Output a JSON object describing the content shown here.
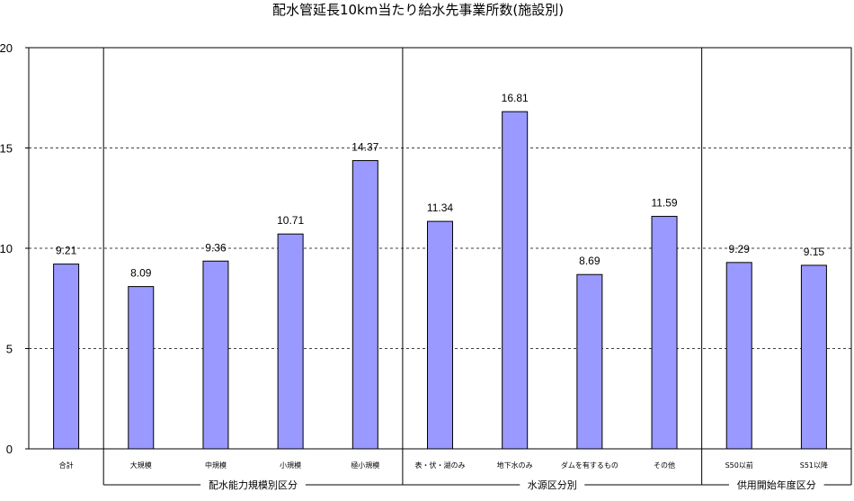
{
  "chart_data": {
    "type": "bar",
    "title": "配水管延長10km当たり給水先事業所数(施設別)",
    "xlabel": "",
    "ylabel": "",
    "ylim": [
      0,
      20
    ],
    "yticks": [
      0,
      5,
      10,
      15,
      20
    ],
    "grid": "horizontal dashed",
    "bar_color": "#9999ff",
    "categories": [
      "合計",
      "大規模",
      "中規模",
      "小規模",
      "極小規模",
      "表・伏・湖のみ",
      "地下水のみ",
      "ダムを有するもの",
      "その他",
      "S50以前",
      "S51以降"
    ],
    "values": [
      9.21,
      8.09,
      9.36,
      10.71,
      14.37,
      11.34,
      16.81,
      8.69,
      11.59,
      9.29,
      9.15
    ],
    "value_labels": [
      "9.21",
      "8.09",
      "9.36",
      "10.71",
      "14.37",
      "11.34",
      "16.81",
      "8.69",
      "11.59",
      "9.29",
      "9.15"
    ],
    "groups": [
      {
        "label": "配水能力規模別区分",
        "start": 1,
        "end": 4
      },
      {
        "label": "水源区分別",
        "start": 5,
        "end": 8
      },
      {
        "label": "供用開始年度区分",
        "start": 9,
        "end": 10
      }
    ]
  }
}
